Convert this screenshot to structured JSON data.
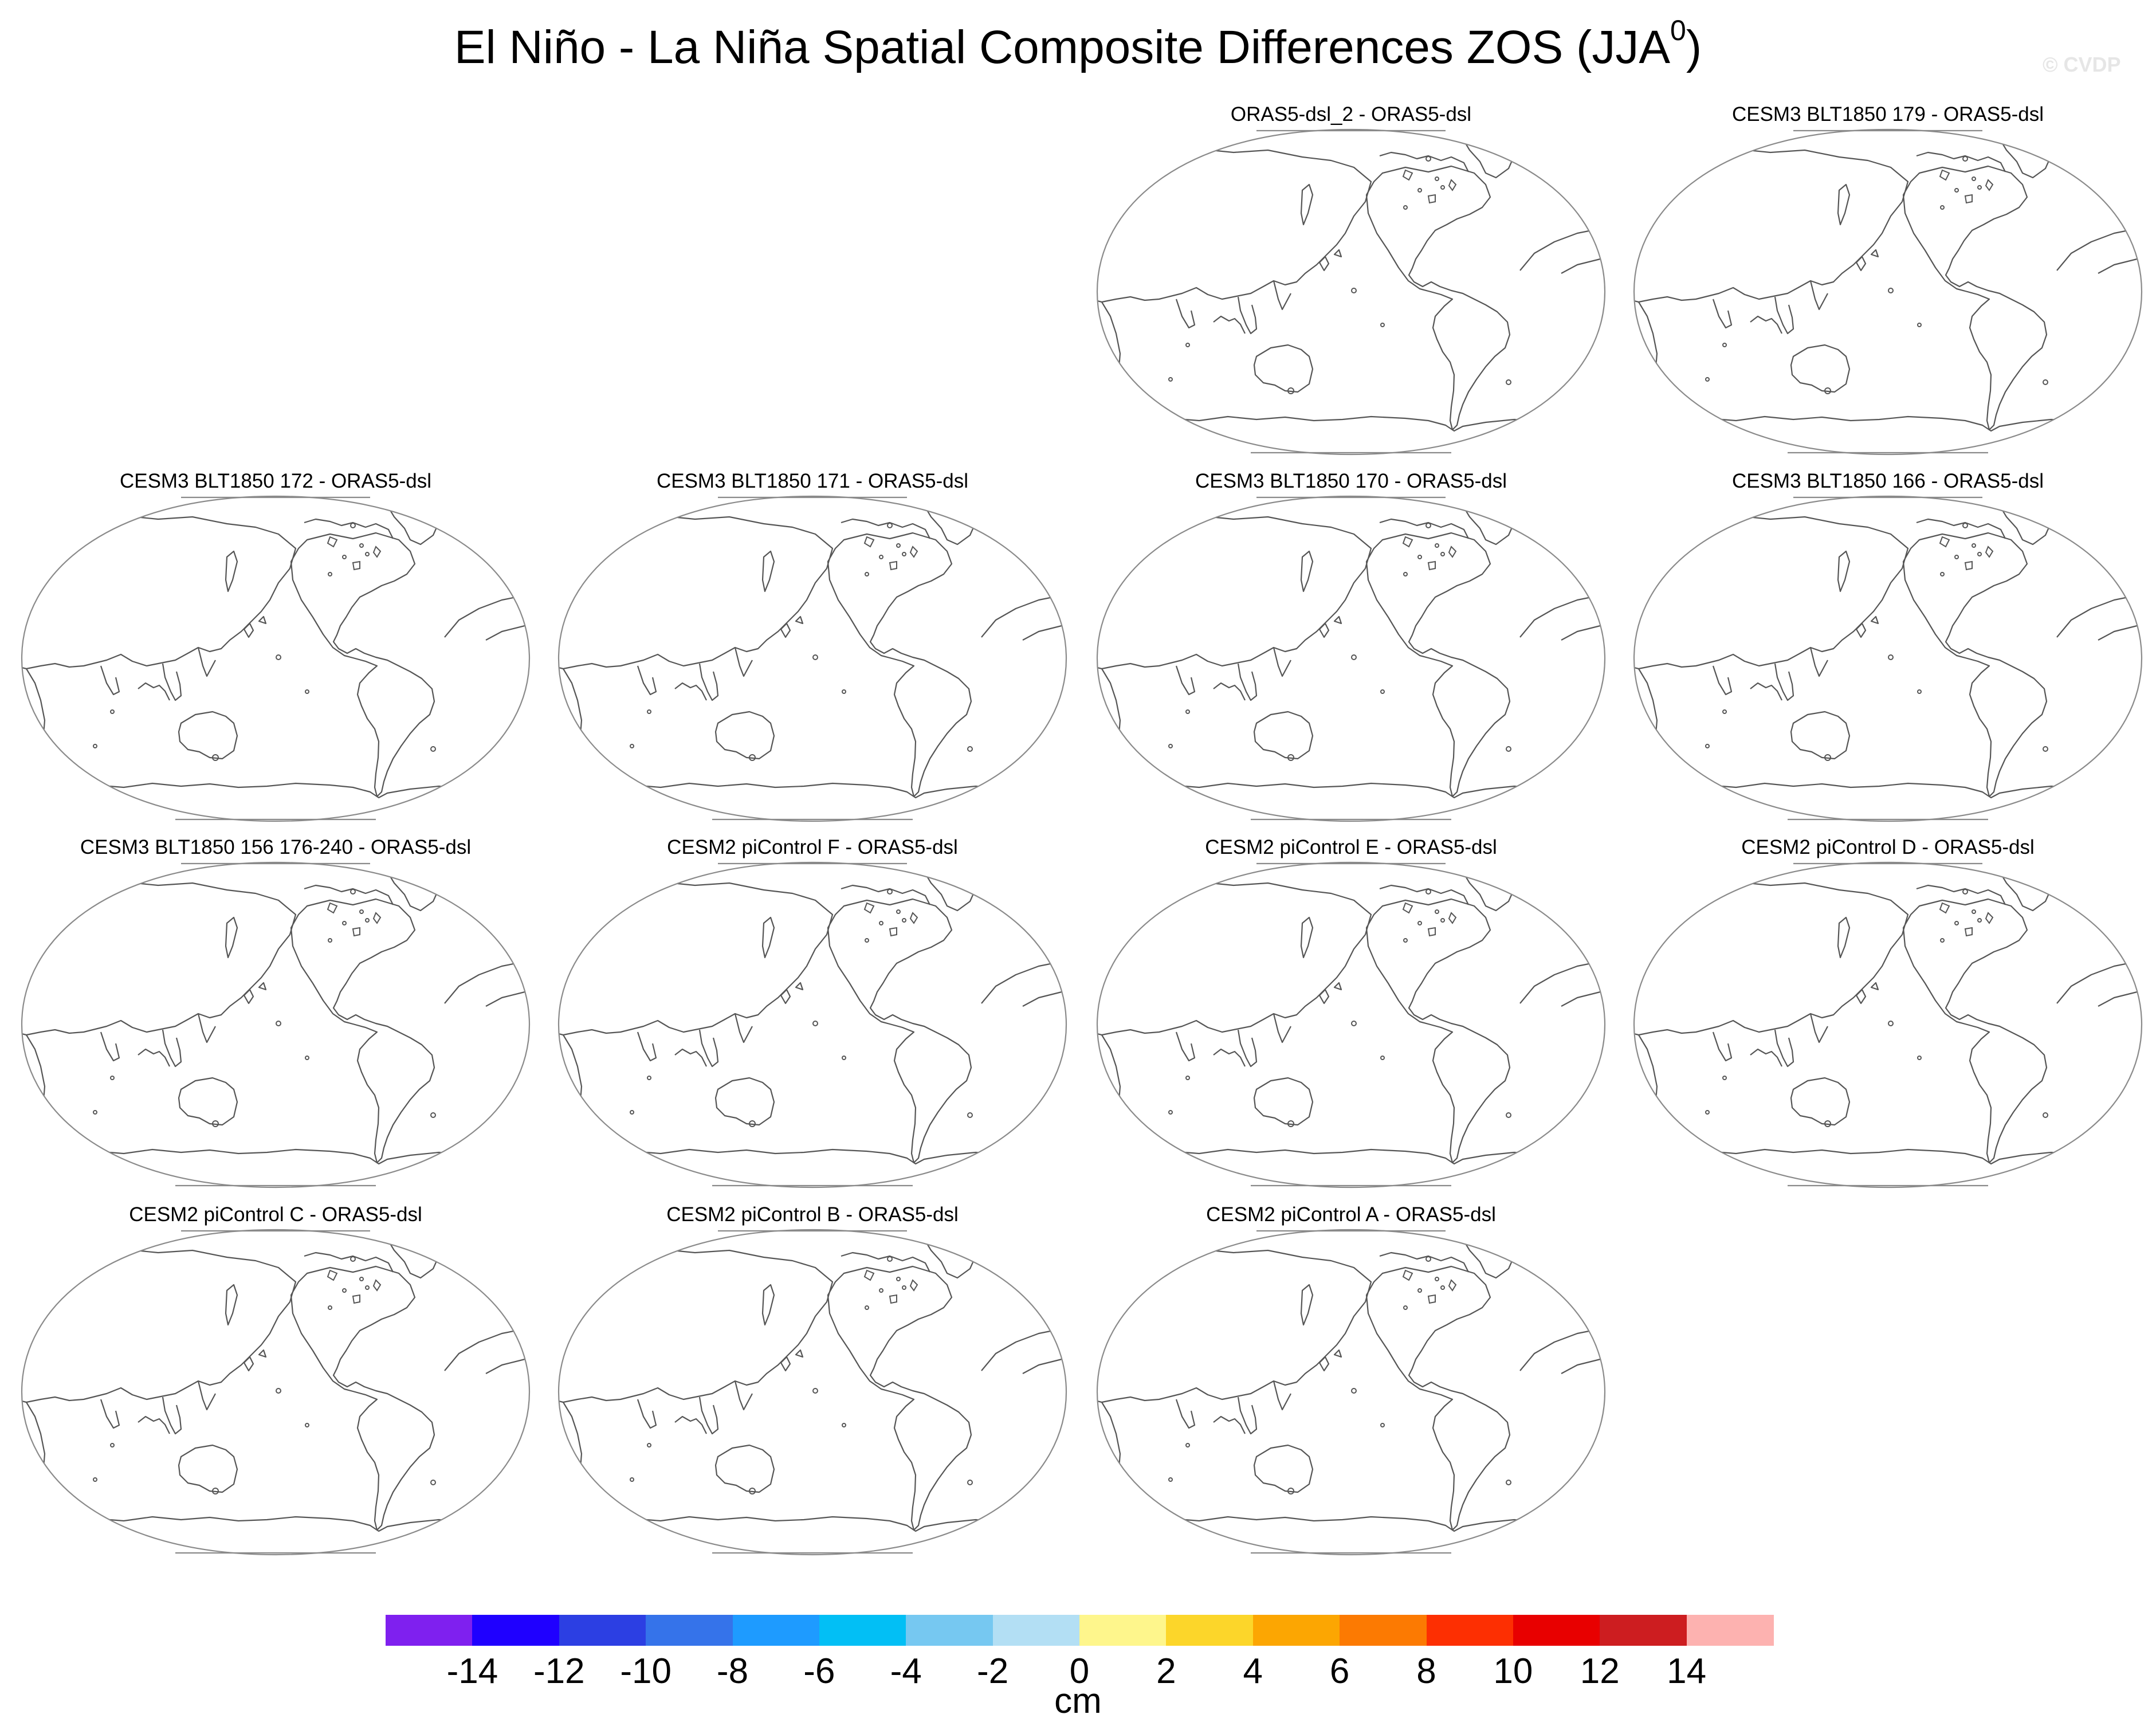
{
  "figure": {
    "title_main": "El Niño - La Niña Spatial Composite Differences ZOS (JJA",
    "title_superscript": "0",
    "title_close": ")",
    "watermark": "© CVDP"
  },
  "panels": [
    {
      "title": "ORAS5-dsl_2 - ORAS5-dsl"
    },
    {
      "title": "CESM3 BLT1850 179 - ORAS5-dsl"
    },
    {
      "title": "CESM3 BLT1850 172 - ORAS5-dsl"
    },
    {
      "title": "CESM3 BLT1850 171 - ORAS5-dsl"
    },
    {
      "title": "CESM3 BLT1850 170 - ORAS5-dsl"
    },
    {
      "title": "CESM3 BLT1850 166 - ORAS5-dsl"
    },
    {
      "title": "CESM3 BLT1850 156 176-240 - ORAS5-dsl"
    },
    {
      "title": "CESM2 piControl F - ORAS5-dsl"
    },
    {
      "title": "CESM2 piControl E - ORAS5-dsl"
    },
    {
      "title": "CESM2 piControl D - ORAS5-dsl"
    },
    {
      "title": "CESM2 piControl C - ORAS5-dsl"
    },
    {
      "title": "CESM2 piControl B - ORAS5-dsl"
    },
    {
      "title": "CESM2 piControl A - ORAS5-dsl"
    }
  ],
  "colorbar": {
    "units": "cm",
    "colors": [
      "#7f20ef",
      "#1f00ff",
      "#2c3fe3",
      "#3573ea",
      "#1e9bff",
      "#02bff5",
      "#76c8f1",
      "#b3dff4",
      "#fef68c",
      "#fcd62a",
      "#fca602",
      "#fc7a02",
      "#fd2f02",
      "#e80000",
      "#cd1d20",
      "#fdb2b0"
    ],
    "labels": [
      "-14",
      "-12",
      "-10",
      "-8",
      "-6",
      "-4",
      "-2",
      "0",
      "2",
      "4",
      "6",
      "8",
      "10",
      "12",
      "14"
    ]
  }
}
